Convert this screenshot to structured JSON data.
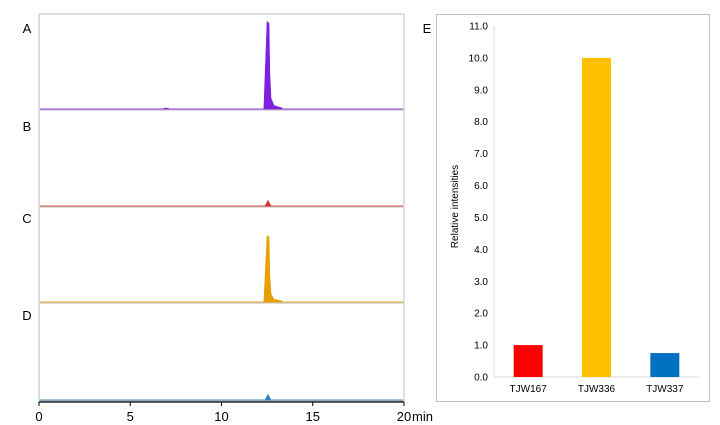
{
  "chart_data": [
    {
      "type": "line",
      "description_kind": "chromatogram",
      "panels": [
        {
          "letter": "A",
          "color": "#7F1FE0",
          "peak_x": 12.55,
          "peak_rel": 0.95,
          "baseline_noise": true
        },
        {
          "letter": "B",
          "color": "#D9342B",
          "peak_x": 12.55,
          "peak_rel": 0.06,
          "baseline_noise": false
        },
        {
          "letter": "C",
          "color": "#E8A000",
          "peak_x": 12.55,
          "peak_rel": 0.72,
          "baseline_noise": false
        },
        {
          "letter": "D",
          "color": "#2E7FBF",
          "peak_x": 12.55,
          "peak_rel": 0.06,
          "baseline_noise": false
        }
      ],
      "xlim": [
        0,
        20
      ],
      "xticks": [
        "0",
        "5",
        "10",
        "15",
        "20"
      ],
      "xunit": "min"
    },
    {
      "type": "bar",
      "letter": "E",
      "categories": [
        "TJW167",
        "TJW336",
        "TJW337"
      ],
      "values": [
        1.0,
        10.0,
        0.75
      ],
      "colors": [
        "#FF0000",
        "#FFC000",
        "#0070C0"
      ],
      "ylabel": "Relative intensities",
      "ylim": [
        0,
        11
      ],
      "yticks": [
        "0.0",
        "1.0",
        "2.0",
        "3.0",
        "4.0",
        "5.0",
        "6.0",
        "7.0",
        "8.0",
        "9.0",
        "10.0",
        "11.0"
      ],
      "grid": false
    }
  ]
}
